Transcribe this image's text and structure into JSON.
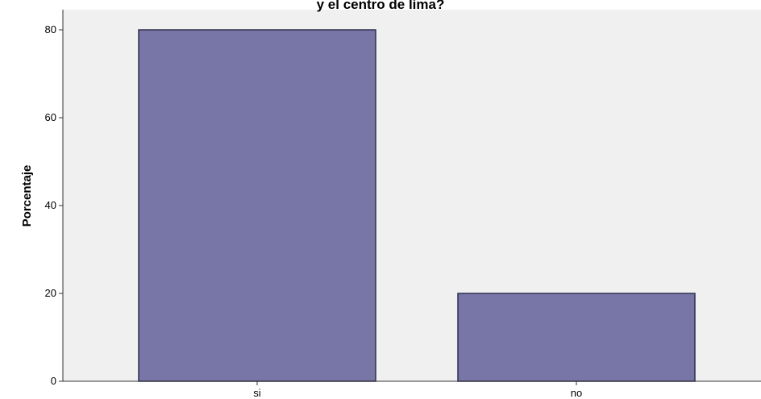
{
  "chart_data": {
    "type": "bar",
    "title": "y el centro de lima?",
    "xlabel": "",
    "ylabel": "Porcentaje",
    "categories": [
      "si",
      "no"
    ],
    "values": [
      80,
      20
    ],
    "ylim": [
      0,
      80
    ],
    "yticks": [
      0,
      20,
      40,
      60,
      80
    ],
    "grid": false,
    "legend": "none",
    "colors": {
      "bar": "#7876a6",
      "bar_edge": "#2f2f4f",
      "plot_background": "#f0f0f0",
      "axis": "#333333"
    }
  }
}
